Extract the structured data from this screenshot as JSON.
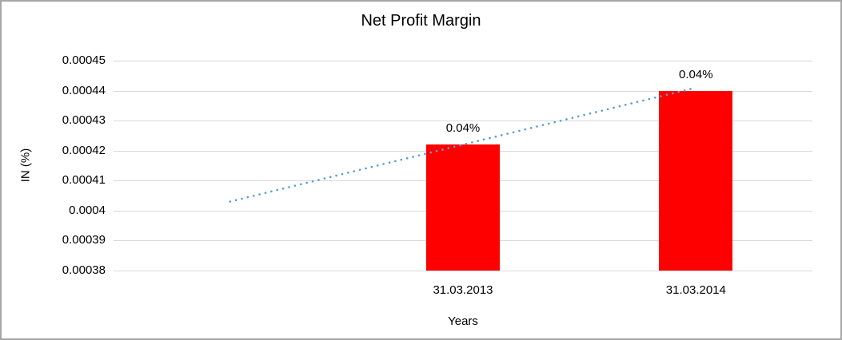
{
  "chart_data": {
    "type": "bar",
    "title": "Net Profit Margin",
    "xlabel": "Years",
    "ylabel": "IN (%)",
    "categories": [
      "",
      "31.03.2013",
      "31.03.2014"
    ],
    "values": [
      null,
      0.000422,
      0.00044
    ],
    "data_labels": [
      "",
      "0.04%",
      "0.04%"
    ],
    "ytick_values": [
      0.00045,
      0.00044,
      0.00043,
      0.00042,
      0.00041,
      0.0004,
      0.00039,
      0.00038
    ],
    "ytick_labels": [
      "0.00045",
      "0.00044",
      "0.00043",
      "0.00042",
      "0.00041",
      "0.0004",
      "0.00039",
      "0.00038"
    ],
    "ylim": [
      0.00038,
      0.00045
    ],
    "grid": true,
    "legend": "none",
    "bar_color": "#ff0000",
    "gridline_color": "#d9d9d9",
    "text_color": "#000000",
    "trendline": {
      "style": "dotted",
      "color": "#5b9bd5",
      "start_value": 0.000403,
      "end_value": 0.000441
    }
  }
}
